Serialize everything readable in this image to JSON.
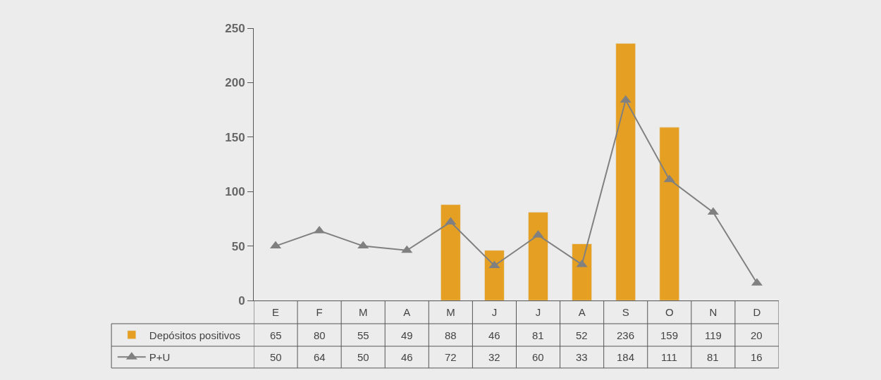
{
  "chart_data": {
    "type": "bar",
    "categories": [
      "E",
      "F",
      "M",
      "A",
      "M",
      "J",
      "J",
      "A",
      "S",
      "O",
      "N",
      "D"
    ],
    "series": [
      {
        "name": "Depósitos positivos",
        "color": "#e5a024",
        "values": [
          null,
          null,
          null,
          null,
          88,
          46,
          81,
          52,
          236,
          159,
          null,
          null
        ],
        "value_labels": [
          "65",
          "80",
          "55",
          "49",
          "88",
          "46",
          "81",
          "52",
          "236",
          "159",
          "119",
          "20"
        ]
      },
      {
        "name": "P+U",
        "type": "line",
        "color": "#808080",
        "marker": "triangle",
        "values": [
          50,
          64,
          50,
          46,
          72,
          32,
          60,
          33,
          184,
          111,
          81,
          16
        ],
        "value_labels": [
          "50",
          "64",
          "50",
          "46",
          "72",
          "32",
          "60",
          "33",
          "184",
          "111",
          "81",
          "16"
        ]
      }
    ],
    "ylim": [
      0,
      250
    ],
    "yticks": [
      0,
      50,
      100,
      150,
      200,
      250
    ],
    "grid": false,
    "legend": "bottom"
  }
}
